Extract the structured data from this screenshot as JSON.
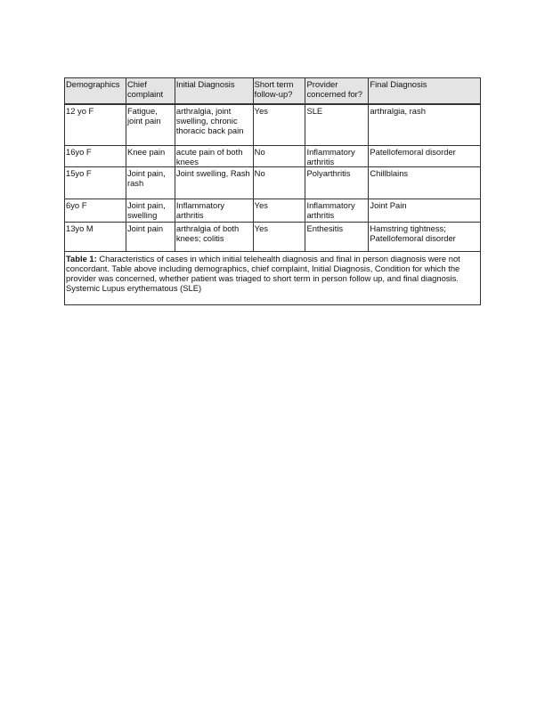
{
  "table": {
    "headers": [
      "Demographics",
      "Chief complaint",
      "Initial Diagnosis",
      "Short term follow-up?",
      "Provider concerned for?",
      "Final Diagnosis"
    ],
    "rows": [
      [
        "12 yo F",
        "Fatigue, joint pain",
        "arthralgia, joint swelling, chronic thoracic back pain",
        "Yes",
        "SLE",
        "arthralgia, rash"
      ],
      [
        "16yo F",
        "Knee pain",
        "acute pain of both knees",
        "No",
        "Inflammatory arthritis",
        "Patellofemoral disorder"
      ],
      [
        "15yo F",
        "Joint pain, rash",
        "Joint swelling, Rash",
        "No",
        "Polyarthritis",
        "Chillblains"
      ],
      [
        "6yo F",
        "Joint pain, swelling",
        "Inflammatory arthritis",
        "Yes",
        "Inflammatory arthritis",
        "Joint Pain"
      ],
      [
        "13yo M",
        "Joint pain",
        "arthralgia of both knees; colitis",
        "Yes",
        "Enthesitis",
        "Hamstring tightness; Patellofemoral disorder"
      ]
    ],
    "caption_label": "Table 1:",
    "caption_text": " Characteristics of cases in which initial telehealth diagnosis and final in person diagnosis were not concordant. Table above including demographics, chief complaint, Initial Diagnosis, Condition for which the provider was concerned, whether patient was triaged to short term in person follow up, and final diagnosis.",
    "abbreviation": "Systemic Lupus erythematous (SLE)"
  }
}
